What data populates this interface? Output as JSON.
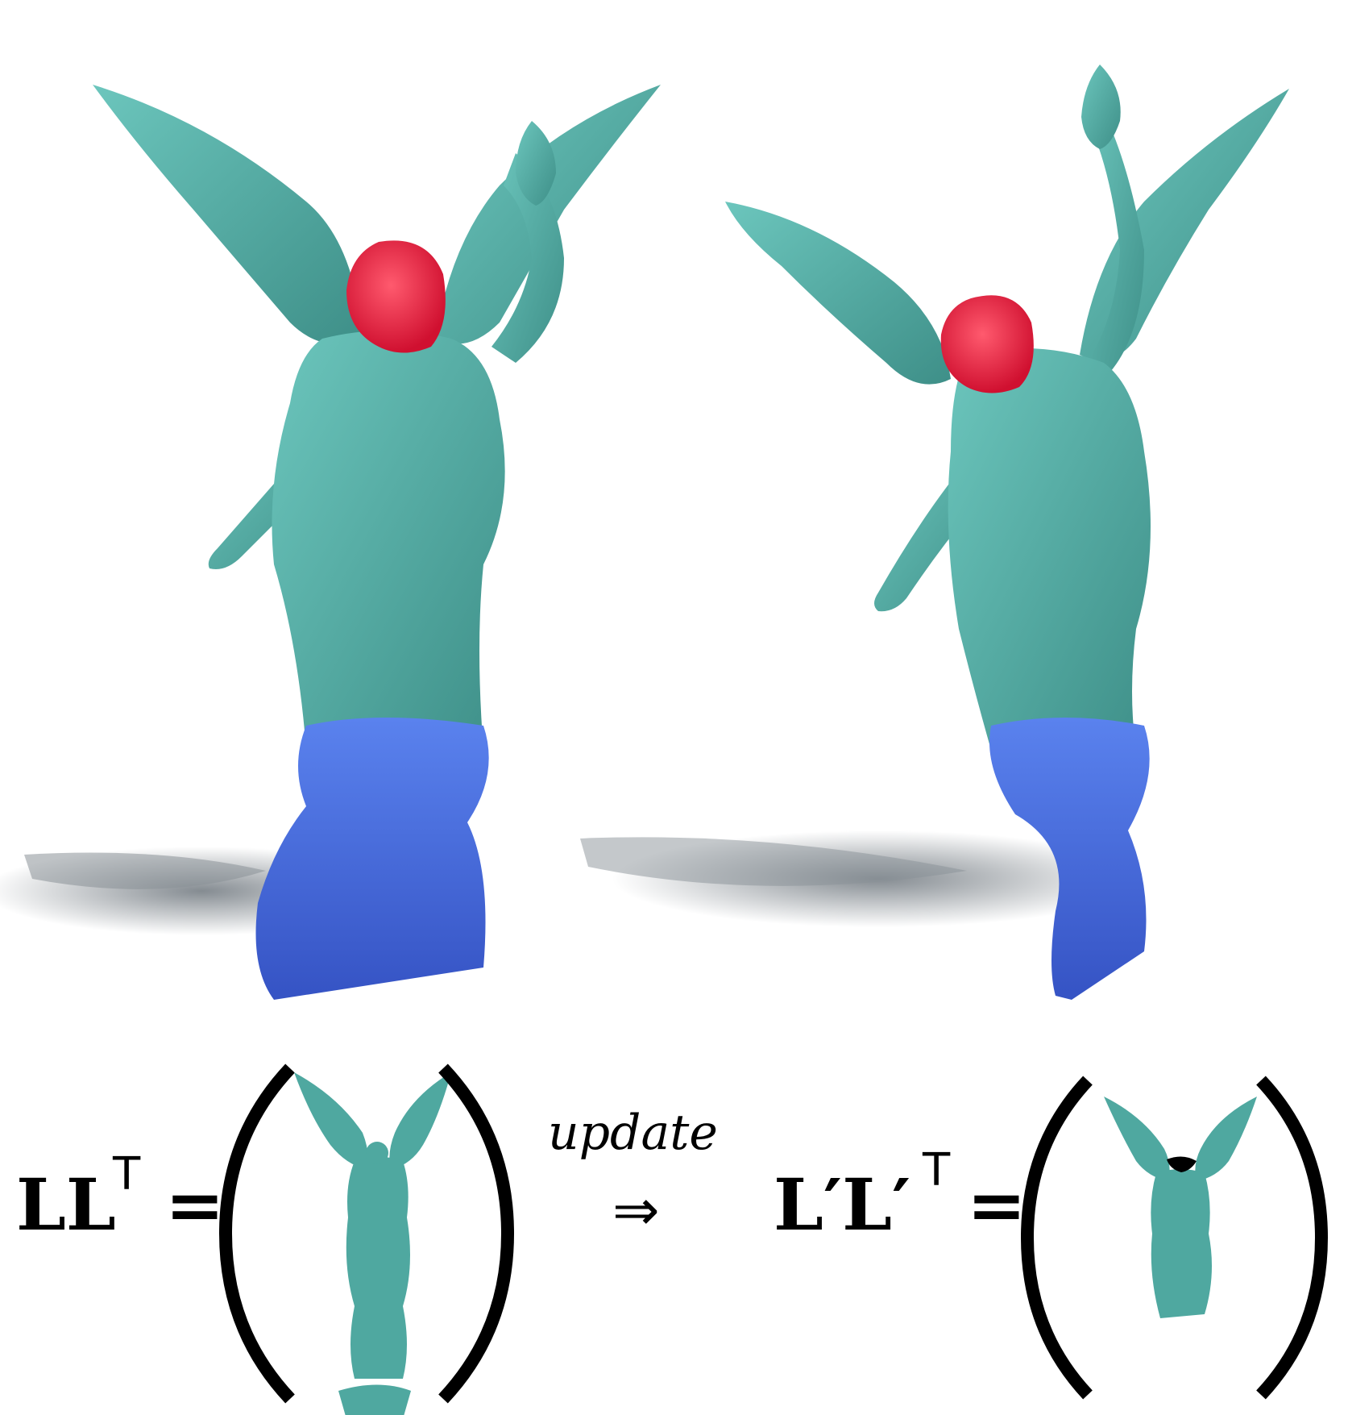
{
  "colors": {
    "head": "#e8203c",
    "body": "#4fa8a0",
    "base": "#4a6fe0",
    "shadow": "#9aa0a6",
    "ink": "#000000"
  },
  "equation": {
    "left_lhs_bold": "LL",
    "left_lhs_sup": "T",
    "equals": "=",
    "update_label": "update",
    "arrow": "⇒",
    "right_lhs_bold": "L′L′",
    "right_lhs_sup": "T"
  }
}
